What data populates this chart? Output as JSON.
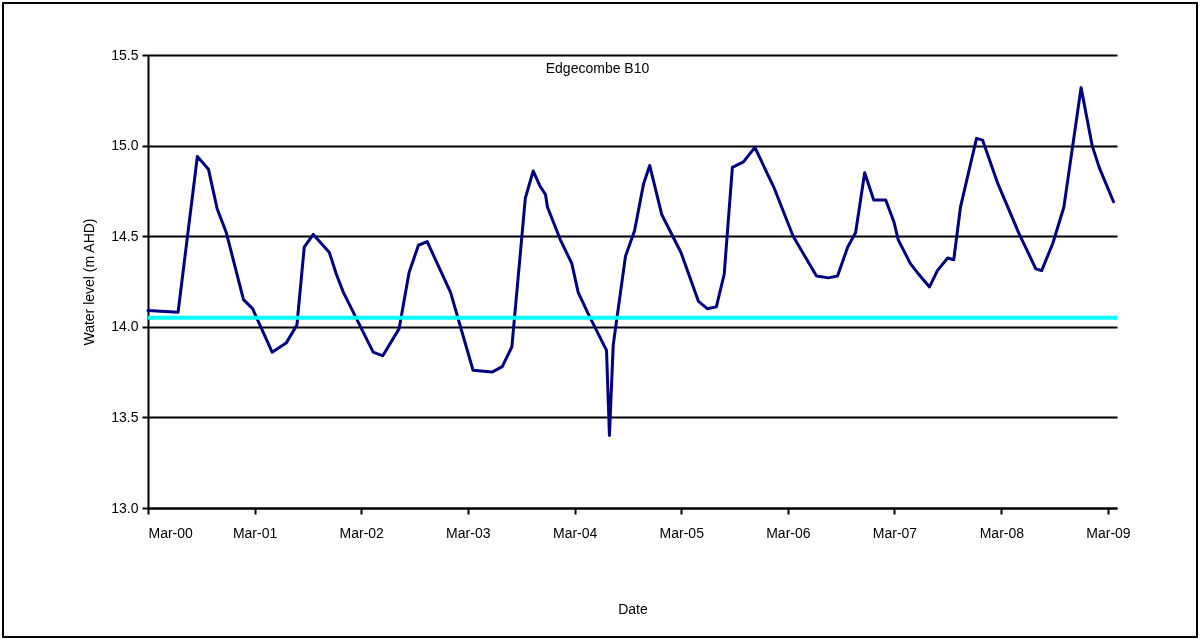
{
  "chart_data": {
    "type": "line",
    "title": "Edgecombe B10",
    "xlabel": "Date",
    "ylabel": "Water level (m AHD)",
    "x": [
      "2000-03-01",
      "2000-06-12",
      "2000-08-17",
      "2000-09-24",
      "2000-10-24",
      "2000-11-24",
      "2001-01-22",
      "2001-02-22",
      "2001-04-30",
      "2001-06-17",
      "2001-07-24",
      "2001-08-18",
      "2001-09-18",
      "2001-11-12",
      "2001-12-06",
      "2001-12-30",
      "2002-04-11",
      "2002-05-14",
      "2002-07-09",
      "2002-08-12",
      "2002-09-13",
      "2002-10-13",
      "2003-01-01",
      "2003-03-19",
      "2003-05-23",
      "2003-06-27",
      "2003-07-30",
      "2003-09-14",
      "2003-10-11",
      "2003-11-02",
      "2003-11-22",
      "2003-11-29",
      "2004-01-12",
      "2004-02-20",
      "2004-03-13",
      "2004-04-14",
      "2004-06-18",
      "2004-06-28",
      "2004-07-11",
      "2004-08-22",
      "2004-09-22",
      "2004-10-23",
      "2004-11-13",
      "2004-12-24",
      "2005-02-28",
      "2005-04-29",
      "2005-05-29",
      "2005-06-29",
      "2005-07-26",
      "2005-08-23",
      "2005-09-30",
      "2005-11-08",
      "2006-01-12",
      "2006-03-19",
      "2006-06-07",
      "2006-07-18",
      "2006-08-18",
      "2006-09-22",
      "2006-10-19",
      "2006-11-19",
      "2006-12-20",
      "2007-01-30",
      "2007-02-27",
      "2007-03-14",
      "2007-04-24",
      "2007-05-18",
      "2007-06-29",
      "2007-07-26",
      "2007-08-30",
      "2007-09-20",
      "2007-10-13",
      "2007-12-07",
      "2007-12-28",
      "2008-02-18",
      "2008-04-29",
      "2008-06-27",
      "2008-07-17",
      "2008-08-24",
      "2008-10-01",
      "2008-11-29",
      "2009-01-06",
      "2009-01-30",
      "2009-03-20"
    ],
    "series": [
      {
        "color": "#000080",
        "values": [
          14.09,
          14.08,
          14.94,
          14.87,
          14.65,
          14.52,
          14.15,
          14.1,
          13.86,
          13.91,
          14.01,
          14.44,
          14.51,
          14.41,
          14.29,
          14.19,
          13.86,
          13.84,
          13.99,
          14.3,
          14.45,
          14.47,
          14.19,
          13.76,
          13.75,
          13.78,
          13.89,
          14.71,
          14.86,
          14.78,
          14.73,
          14.66,
          14.48,
          14.35,
          14.19,
          14.08,
          13.87,
          13.4,
          13.9,
          14.39,
          14.53,
          14.79,
          14.89,
          14.62,
          14.41,
          14.14,
          14.1,
          14.11,
          14.29,
          14.88,
          14.91,
          14.99,
          14.77,
          14.5,
          14.28,
          14.27,
          14.28,
          14.44,
          14.52,
          14.85,
          14.7,
          14.7,
          14.58,
          14.48,
          14.35,
          14.3,
          14.22,
          14.31,
          14.38,
          14.37,
          14.66,
          15.04,
          15.03,
          14.79,
          14.52,
          14.32,
          14.31,
          14.46,
          14.66,
          15.32,
          15.0,
          14.88,
          14.69
        ]
      }
    ],
    "ref_lines": [
      {
        "axis": "y",
        "value": 14.05,
        "color": "#00ffff"
      }
    ],
    "xlim": [
      "2000-03-01",
      "2009-04-01"
    ],
    "xticks": [
      {
        "value": "2000-03-01",
        "label": "Mar-00"
      },
      {
        "value": "2001-03-01",
        "label": "Mar-01"
      },
      {
        "value": "2002-03-01",
        "label": "Mar-02"
      },
      {
        "value": "2003-03-01",
        "label": "Mar-03"
      },
      {
        "value": "2004-03-01",
        "label": "Mar-04"
      },
      {
        "value": "2005-03-01",
        "label": "Mar-05"
      },
      {
        "value": "2006-03-01",
        "label": "Mar-06"
      },
      {
        "value": "2007-03-01",
        "label": "Mar-07"
      },
      {
        "value": "2008-03-01",
        "label": "Mar-08"
      },
      {
        "value": "2009-03-01",
        "label": "Mar-09"
      }
    ],
    "ylim": [
      13.0,
      15.5
    ],
    "yticks": [
      {
        "value": 13.0,
        "label": "13.0"
      },
      {
        "value": 13.5,
        "label": "13.5"
      },
      {
        "value": 14.0,
        "label": "14.0"
      },
      {
        "value": 14.5,
        "label": "14.5"
      },
      {
        "value": 15.0,
        "label": "15.0"
      },
      {
        "value": 15.5,
        "label": "15.5"
      }
    ],
    "grid": "y",
    "legend": false,
    "marker": "none",
    "line_style": "solid"
  }
}
